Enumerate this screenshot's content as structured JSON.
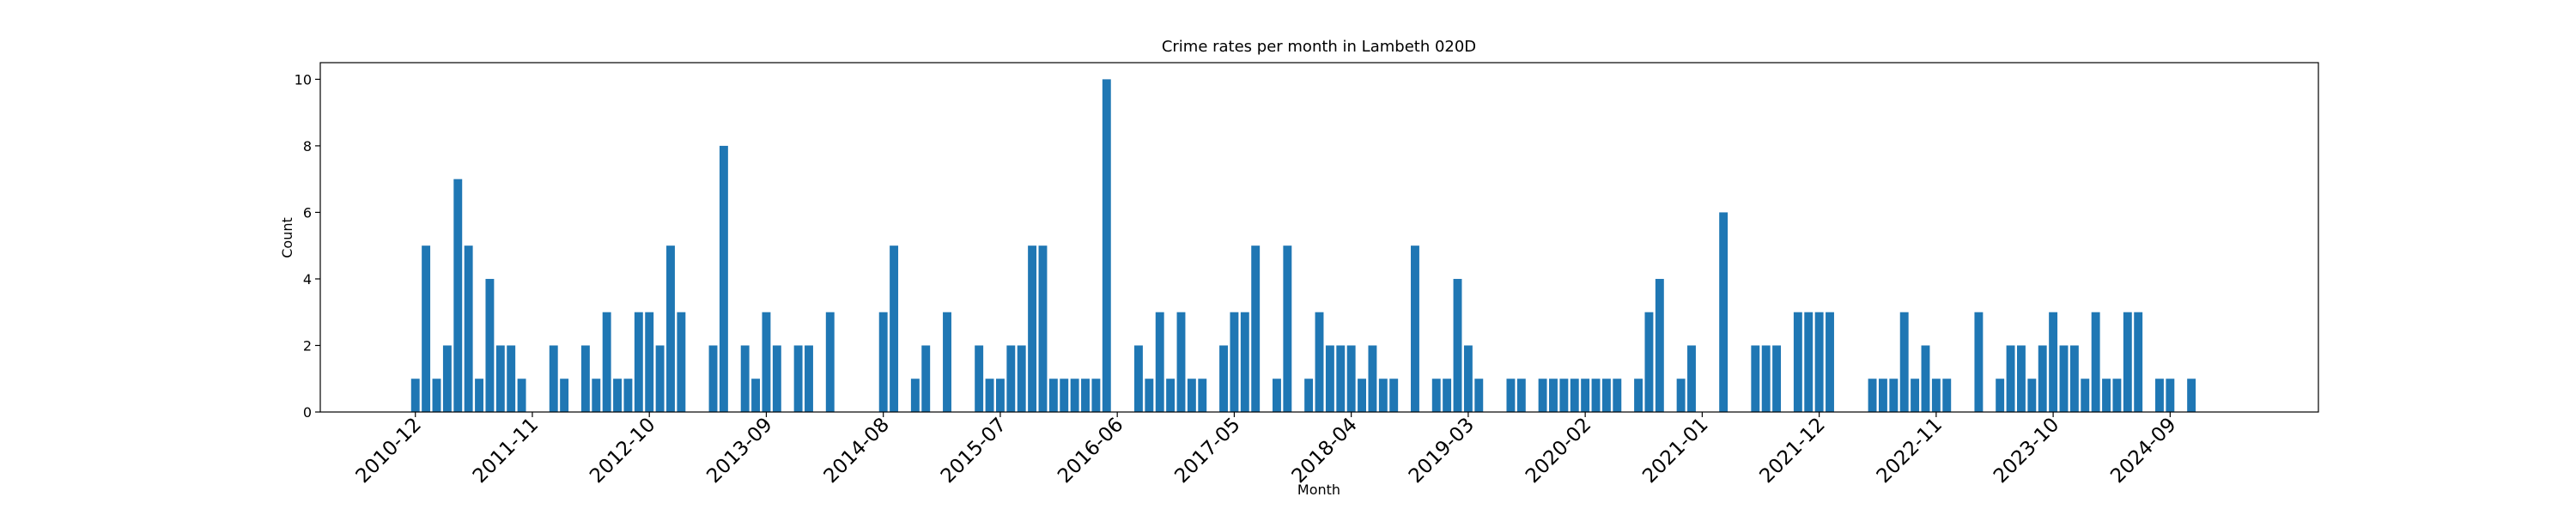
{
  "chart_data": {
    "type": "bar",
    "title": "Crime rates per month in Lambeth 020D",
    "x_label": "Month",
    "y_label": "Count",
    "color": "#1f77b4",
    "categories": [
      "2010-12",
      null,
      null,
      null,
      null,
      null,
      null,
      null,
      null,
      null,
      null,
      "2011-11",
      null,
      null,
      null,
      null,
      null,
      null,
      null,
      null,
      null,
      null,
      "2012-10",
      null,
      null,
      null,
      null,
      null,
      null,
      null,
      null,
      null,
      null,
      "2013-09",
      null,
      null,
      null,
      null,
      null,
      null,
      null,
      null,
      null,
      null,
      "2014-08",
      null,
      null,
      null,
      null,
      null,
      null,
      null,
      null,
      null,
      null,
      "2015-07",
      null,
      null,
      null,
      null,
      null,
      null,
      null,
      null,
      null,
      null,
      "2016-06",
      null,
      null,
      null,
      null,
      null,
      null,
      null,
      null,
      null,
      null,
      "2017-05",
      null,
      null,
      null,
      null,
      null,
      null,
      null,
      null,
      null,
      null,
      "2018-04",
      null,
      null,
      null,
      null,
      null,
      null,
      null,
      null,
      null,
      null,
      "2019-03",
      null,
      null,
      null,
      null,
      null,
      null,
      null,
      null,
      null,
      null,
      "2020-02",
      null,
      null,
      null,
      null,
      null,
      null,
      null,
      null,
      null,
      null,
      "2021-01",
      null,
      null,
      null,
      null,
      null,
      null,
      null,
      null,
      null,
      null,
      "2021-12",
      null,
      null,
      null,
      null,
      null,
      null,
      null,
      null,
      null,
      null,
      "2022-11",
      null,
      null,
      null,
      null,
      null,
      null,
      null,
      null,
      null,
      null,
      "2023-10",
      null,
      null,
      null,
      null,
      null,
      null,
      null,
      null,
      null,
      null,
      "2024-09",
      null,
      null,
      null,
      null,
      null
    ],
    "values": [
      1,
      5,
      1,
      2,
      7,
      5,
      1,
      4,
      2,
      2,
      1,
      0,
      0,
      2,
      1,
      0,
      2,
      1,
      3,
      1,
      1,
      3,
      3,
      2,
      5,
      3,
      0,
      0,
      2,
      8,
      0,
      2,
      1,
      3,
      2,
      0,
      2,
      2,
      0,
      3,
      0,
      0,
      0,
      0,
      3,
      5,
      0,
      1,
      2,
      0,
      3,
      0,
      0,
      2,
      1,
      1,
      2,
      2,
      5,
      5,
      1,
      1,
      1,
      1,
      1,
      10,
      0,
      0,
      2,
      1,
      3,
      1,
      3,
      1,
      1,
      0,
      2,
      3,
      3,
      5,
      0,
      1,
      5,
      0,
      1,
      3,
      2,
      2,
      2,
      1,
      2,
      1,
      1,
      0,
      5,
      0,
      1,
      1,
      4,
      2,
      1,
      0,
      0,
      1,
      1,
      0,
      1,
      1,
      1,
      1,
      1,
      1,
      1,
      1,
      0,
      1,
      3,
      4,
      0,
      1,
      2,
      0,
      0,
      6,
      0,
      0,
      2,
      2,
      2,
      0,
      3,
      3,
      3,
      3,
      0,
      0,
      0,
      1,
      1,
      1,
      3,
      1,
      2,
      1,
      1,
      0,
      0,
      3,
      0,
      1,
      2,
      2,
      1,
      2,
      3,
      2,
      2,
      1,
      3,
      1,
      1,
      3,
      3,
      0,
      1,
      1,
      0,
      1,
      0,
      0,
      0
    ],
    "ylim": [
      0,
      10.5
    ],
    "yticks": [
      0,
      2,
      4,
      6,
      8,
      10
    ],
    "grid": false
  }
}
